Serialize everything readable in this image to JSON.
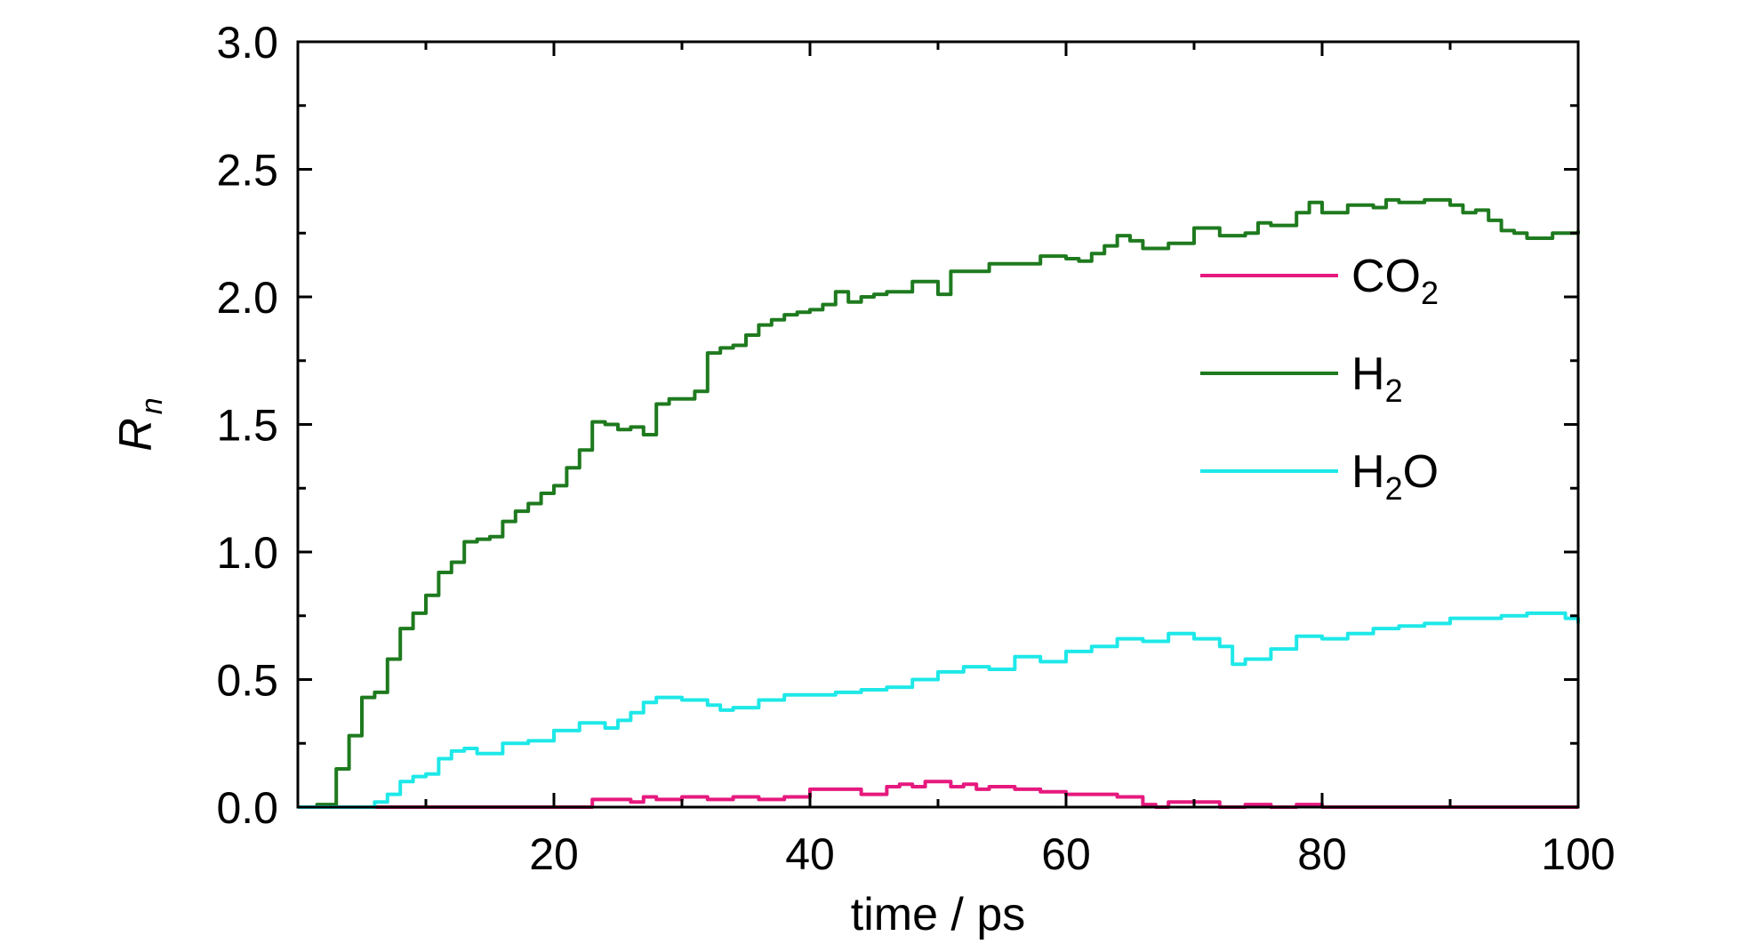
{
  "chart_data": {
    "type": "line",
    "title": "",
    "xlabel": "time / ps",
    "ylabel_main": "R",
    "ylabel_sub": "n",
    "xlim": [
      0,
      100
    ],
    "ylim": [
      0,
      3
    ],
    "xticks": [
      20,
      40,
      60,
      80,
      100
    ],
    "xtick_labels": [
      "20",
      "40",
      "60",
      "80",
      "100"
    ],
    "yticks": [
      0,
      0.5,
      1,
      1.5,
      2,
      2.5,
      3
    ],
    "ytick_labels": [
      "0.0",
      "0.5",
      "1.0",
      "1.5",
      "2.0",
      "2.5",
      "3.0"
    ],
    "grid": false,
    "legend_position": "right",
    "series": [
      {
        "name": "CO2",
        "legend_main": "CO",
        "legend_sub": "2",
        "color": "#e6197e",
        "x": [
          0,
          22,
          23,
          25,
          26,
          27,
          28,
          30,
          32,
          34,
          36,
          38,
          40,
          42,
          44,
          46,
          47,
          48,
          49,
          50,
          51,
          52,
          53,
          54,
          56,
          58,
          60,
          62,
          64,
          65,
          66,
          67,
          68,
          70,
          72,
          74,
          76,
          78,
          80,
          82,
          85,
          90,
          95,
          100
        ],
        "y": [
          0,
          0,
          0.03,
          0.03,
          0.02,
          0.04,
          0.03,
          0.04,
          0.03,
          0.04,
          0.03,
          0.04,
          0.07,
          0.07,
          0.05,
          0.08,
          0.09,
          0.08,
          0.1,
          0.1,
          0.08,
          0.09,
          0.07,
          0.08,
          0.07,
          0.06,
          0.05,
          0.05,
          0.04,
          0.04,
          0.01,
          0.0,
          0.02,
          0.02,
          0.0,
          0.01,
          0.0,
          0.01,
          0.0,
          0.0,
          0.0,
          0.0,
          0.0,
          0.0
        ]
      },
      {
        "name": "H2",
        "legend_main": "H",
        "legend_sub": "2",
        "color": "#1e7a1e",
        "x": [
          0,
          1.5,
          3,
          4,
          5,
          6,
          7,
          8,
          9,
          10,
          11,
          12,
          13,
          14,
          15,
          16,
          17,
          18,
          19,
          20,
          21,
          22,
          23,
          24,
          25,
          26,
          27,
          28,
          29,
          30,
          31,
          32,
          33,
          34,
          35,
          36,
          37,
          38,
          39,
          40,
          41,
          42,
          43,
          44,
          45,
          46,
          48,
          50,
          51,
          52,
          54,
          56,
          58,
          60,
          61,
          62,
          63,
          64,
          65,
          66,
          68,
          70,
          72,
          74,
          75,
          76,
          78,
          79,
          80,
          82,
          84,
          85,
          86,
          88,
          90,
          91,
          92,
          93,
          94,
          95,
          96,
          98,
          100
        ],
        "y": [
          0,
          0.01,
          0.15,
          0.28,
          0.43,
          0.45,
          0.58,
          0.7,
          0.76,
          0.83,
          0.92,
          0.96,
          1.04,
          1.05,
          1.06,
          1.12,
          1.16,
          1.19,
          1.23,
          1.26,
          1.33,
          1.4,
          1.51,
          1.5,
          1.48,
          1.49,
          1.46,
          1.58,
          1.6,
          1.6,
          1.63,
          1.78,
          1.8,
          1.81,
          1.85,
          1.89,
          1.91,
          1.93,
          1.94,
          1.95,
          1.97,
          2.02,
          1.98,
          2.0,
          2.01,
          2.02,
          2.06,
          2.01,
          2.1,
          2.1,
          2.13,
          2.13,
          2.16,
          2.15,
          2.14,
          2.17,
          2.2,
          2.24,
          2.22,
          2.19,
          2.21,
          2.27,
          2.24,
          2.25,
          2.29,
          2.28,
          2.33,
          2.37,
          2.33,
          2.36,
          2.35,
          2.38,
          2.37,
          2.38,
          2.36,
          2.33,
          2.34,
          2.3,
          2.26,
          2.25,
          2.23,
          2.25,
          2.26
        ]
      },
      {
        "name": "H2O",
        "legend_main": "H",
        "legend_sub": "2",
        "legend_tail": "O",
        "color": "#1ee8e8",
        "x": [
          0,
          4,
          6,
          7,
          8,
          9,
          10,
          11,
          12,
          13,
          14,
          16,
          18,
          20,
          22,
          24,
          25,
          26,
          27,
          28,
          30,
          32,
          33,
          34,
          36,
          38,
          40,
          42,
          44,
          46,
          48,
          50,
          52,
          54,
          56,
          58,
          60,
          62,
          64,
          66,
          68,
          70,
          72,
          73,
          74,
          76,
          78,
          80,
          82,
          84,
          86,
          88,
          90,
          92,
          94,
          96,
          98,
          99,
          100
        ],
        "y": [
          0,
          0,
          0.02,
          0.05,
          0.1,
          0.12,
          0.13,
          0.19,
          0.22,
          0.23,
          0.21,
          0.25,
          0.26,
          0.3,
          0.33,
          0.31,
          0.34,
          0.37,
          0.41,
          0.43,
          0.42,
          0.4,
          0.38,
          0.39,
          0.42,
          0.44,
          0.44,
          0.45,
          0.46,
          0.47,
          0.5,
          0.53,
          0.55,
          0.54,
          0.59,
          0.57,
          0.61,
          0.63,
          0.66,
          0.65,
          0.68,
          0.66,
          0.63,
          0.56,
          0.58,
          0.62,
          0.67,
          0.66,
          0.68,
          0.7,
          0.71,
          0.72,
          0.74,
          0.74,
          0.75,
          0.76,
          0.76,
          0.74,
          0.72
        ]
      }
    ]
  }
}
